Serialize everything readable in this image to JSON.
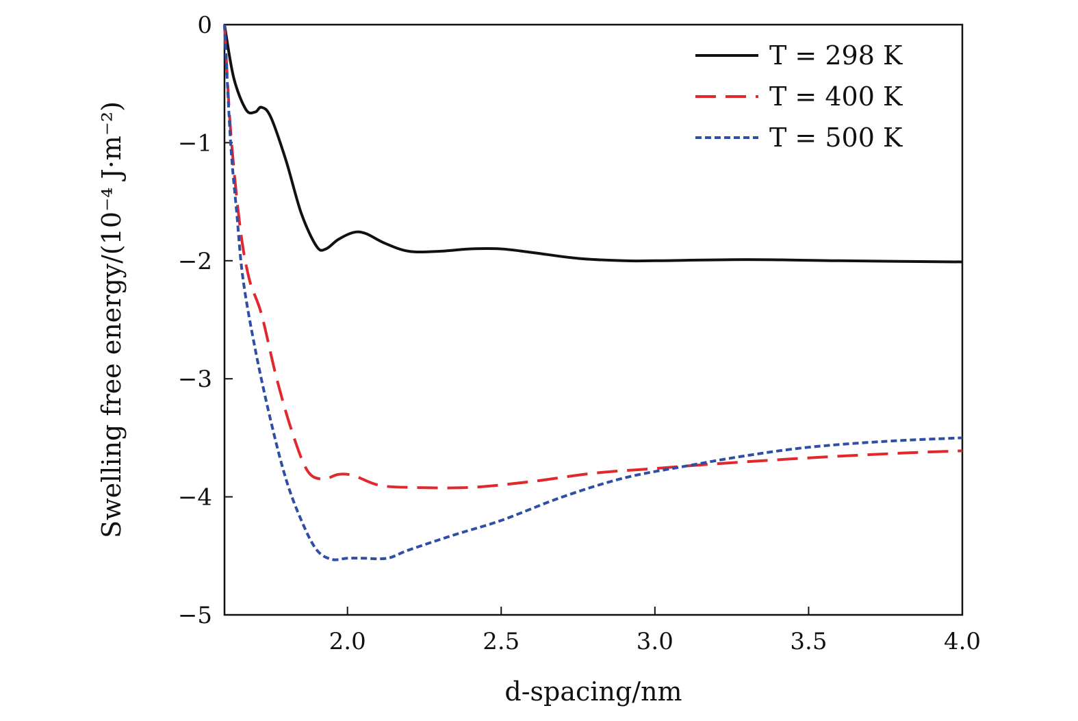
{
  "chart_data": {
    "type": "line",
    "xlabel": "d-spacing/nm",
    "ylabel": "Swelling free energy/(10⁻⁴ J·m⁻²)",
    "xlim": [
      1.6,
      4.0
    ],
    "ylim": [
      -5,
      0
    ],
    "x_ticks": [
      "2.0",
      "2.5",
      "3.0",
      "3.5",
      "4.0"
    ],
    "y_ticks": [
      "0",
      "−1",
      "−2",
      "−3",
      "−4",
      "−5"
    ],
    "grid": false,
    "legend_position": "top-right",
    "series": [
      {
        "name": "T = 298 K",
        "color": "#111111",
        "dash": "solid",
        "points": [
          [
            1.6,
            0.0
          ],
          [
            1.63,
            -0.45
          ],
          [
            1.67,
            -0.72
          ],
          [
            1.7,
            -0.74
          ],
          [
            1.72,
            -0.7
          ],
          [
            1.75,
            -0.78
          ],
          [
            1.8,
            -1.15
          ],
          [
            1.85,
            -1.6
          ],
          [
            1.9,
            -1.88
          ],
          [
            1.93,
            -1.9
          ],
          [
            1.97,
            -1.82
          ],
          [
            2.02,
            -1.76
          ],
          [
            2.06,
            -1.77
          ],
          [
            2.12,
            -1.85
          ],
          [
            2.2,
            -1.92
          ],
          [
            2.3,
            -1.92
          ],
          [
            2.4,
            -1.9
          ],
          [
            2.5,
            -1.9
          ],
          [
            2.6,
            -1.93
          ],
          [
            2.75,
            -1.98
          ],
          [
            2.9,
            -2.0
          ],
          [
            3.0,
            -2.0
          ],
          [
            3.3,
            -1.99
          ],
          [
            3.6,
            -2.0
          ],
          [
            4.0,
            -2.01
          ]
        ]
      },
      {
        "name": "T = 400 K",
        "color": "#e0282e",
        "dash": "dashed",
        "points": [
          [
            1.6,
            0.0
          ],
          [
            1.62,
            -0.9
          ],
          [
            1.65,
            -1.7
          ],
          [
            1.68,
            -2.15
          ],
          [
            1.72,
            -2.45
          ],
          [
            1.77,
            -3.0
          ],
          [
            1.82,
            -3.45
          ],
          [
            1.87,
            -3.78
          ],
          [
            1.92,
            -3.85
          ],
          [
            1.97,
            -3.81
          ],
          [
            2.02,
            -3.82
          ],
          [
            2.1,
            -3.9
          ],
          [
            2.2,
            -3.92
          ],
          [
            2.4,
            -3.92
          ],
          [
            2.6,
            -3.87
          ],
          [
            2.8,
            -3.8
          ],
          [
            3.0,
            -3.76
          ],
          [
            3.2,
            -3.72
          ],
          [
            3.5,
            -3.67
          ],
          [
            3.8,
            -3.63
          ],
          [
            4.0,
            -3.61
          ]
        ]
      },
      {
        "name": "T = 500 K",
        "color": "#2e4fa3",
        "dash": "dotted",
        "points": [
          [
            1.6,
            0.0
          ],
          [
            1.62,
            -1.0
          ],
          [
            1.64,
            -1.6
          ],
          [
            1.66,
            -2.15
          ],
          [
            1.7,
            -2.75
          ],
          [
            1.75,
            -3.35
          ],
          [
            1.8,
            -3.85
          ],
          [
            1.85,
            -4.2
          ],
          [
            1.9,
            -4.45
          ],
          [
            1.95,
            -4.53
          ],
          [
            2.0,
            -4.52
          ],
          [
            2.05,
            -4.52
          ],
          [
            2.13,
            -4.52
          ],
          [
            2.2,
            -4.45
          ],
          [
            2.35,
            -4.32
          ],
          [
            2.5,
            -4.2
          ],
          [
            2.7,
            -4.0
          ],
          [
            2.9,
            -3.84
          ],
          [
            3.1,
            -3.74
          ],
          [
            3.3,
            -3.65
          ],
          [
            3.5,
            -3.58
          ],
          [
            3.75,
            -3.53
          ],
          [
            4.0,
            -3.5
          ]
        ]
      }
    ]
  }
}
